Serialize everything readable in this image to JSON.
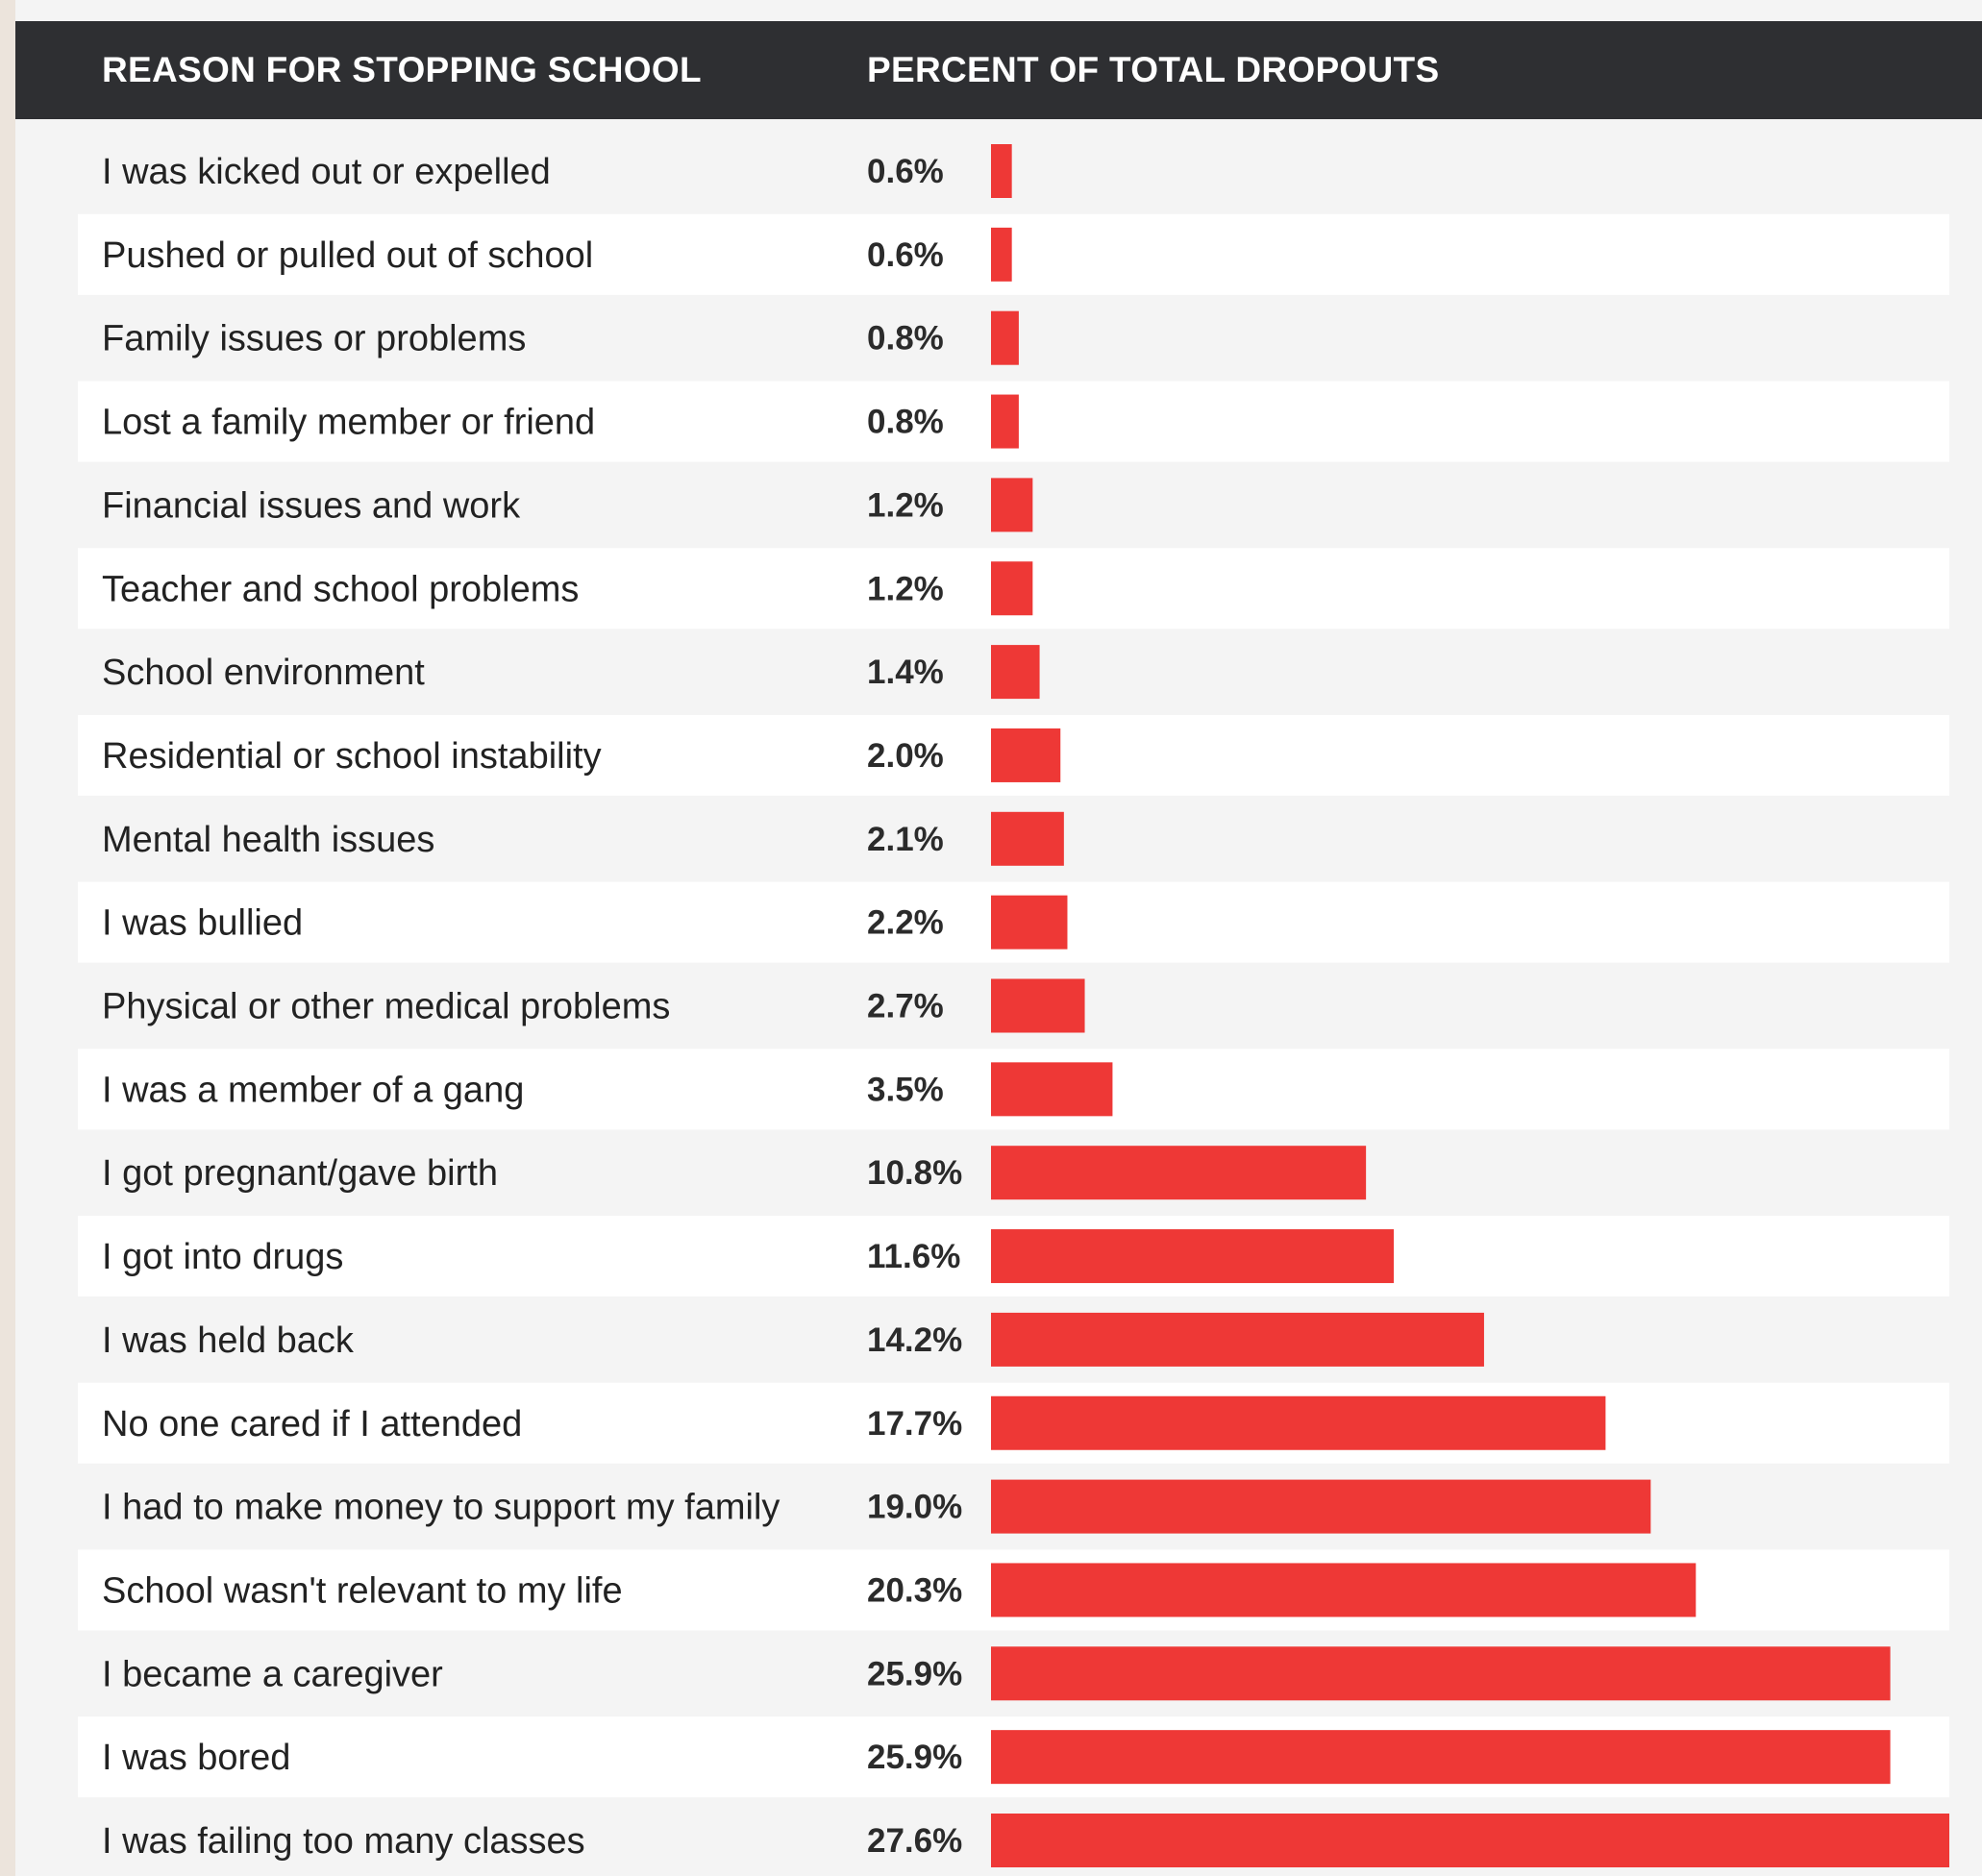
{
  "header": {
    "reason_label": "REASON FOR STOPPING SCHOOL",
    "percent_label": "PERCENT OF TOTAL DROPOUTS"
  },
  "colors": {
    "bar": "#ee3836",
    "header_bg": "#2e2f32",
    "stripe": "#ffffff",
    "panel_bg": "#f4f4f4"
  },
  "chart_data": {
    "type": "bar",
    "orientation": "horizontal",
    "categories": [
      "I was kicked out or expelled",
      "Pushed or pulled out of school",
      "Family issues or problems",
      "Lost a family member or friend",
      "Financial issues and work",
      "Teacher and school problems",
      "School environment",
      "Residential or school instability",
      "Mental health issues",
      "I was bullied",
      "Physical or other medical problems",
      "I was a member of a gang",
      "I got pregnant/gave birth",
      "I got into drugs",
      "I was held back",
      "No one cared if I attended",
      "I had to make money to support my family",
      "School wasn't relevant to my life",
      "I became a caregiver",
      "I was bored",
      "I was failing too many classes"
    ],
    "values": [
      0.6,
      0.6,
      0.8,
      0.8,
      1.2,
      1.2,
      1.4,
      2.0,
      2.1,
      2.2,
      2.7,
      3.5,
      10.8,
      11.6,
      14.2,
      17.7,
      19.0,
      20.3,
      25.9,
      25.9,
      27.6
    ],
    "value_labels": [
      "0.6%",
      "0.6%",
      "0.8%",
      "0.8%",
      "1.2%",
      "1.2%",
      "1.4%",
      "2.0%",
      "2.1%",
      "2.2%",
      "2.7%",
      "3.5%",
      "10.8%",
      "11.6%",
      "14.2%",
      "17.7%",
      "19.0%",
      "20.3%",
      "25.9%",
      "25.9%",
      "27.6%"
    ],
    "unit": "%",
    "xlim": [
      0,
      27.6
    ],
    "grid": false,
    "legend": "none"
  }
}
